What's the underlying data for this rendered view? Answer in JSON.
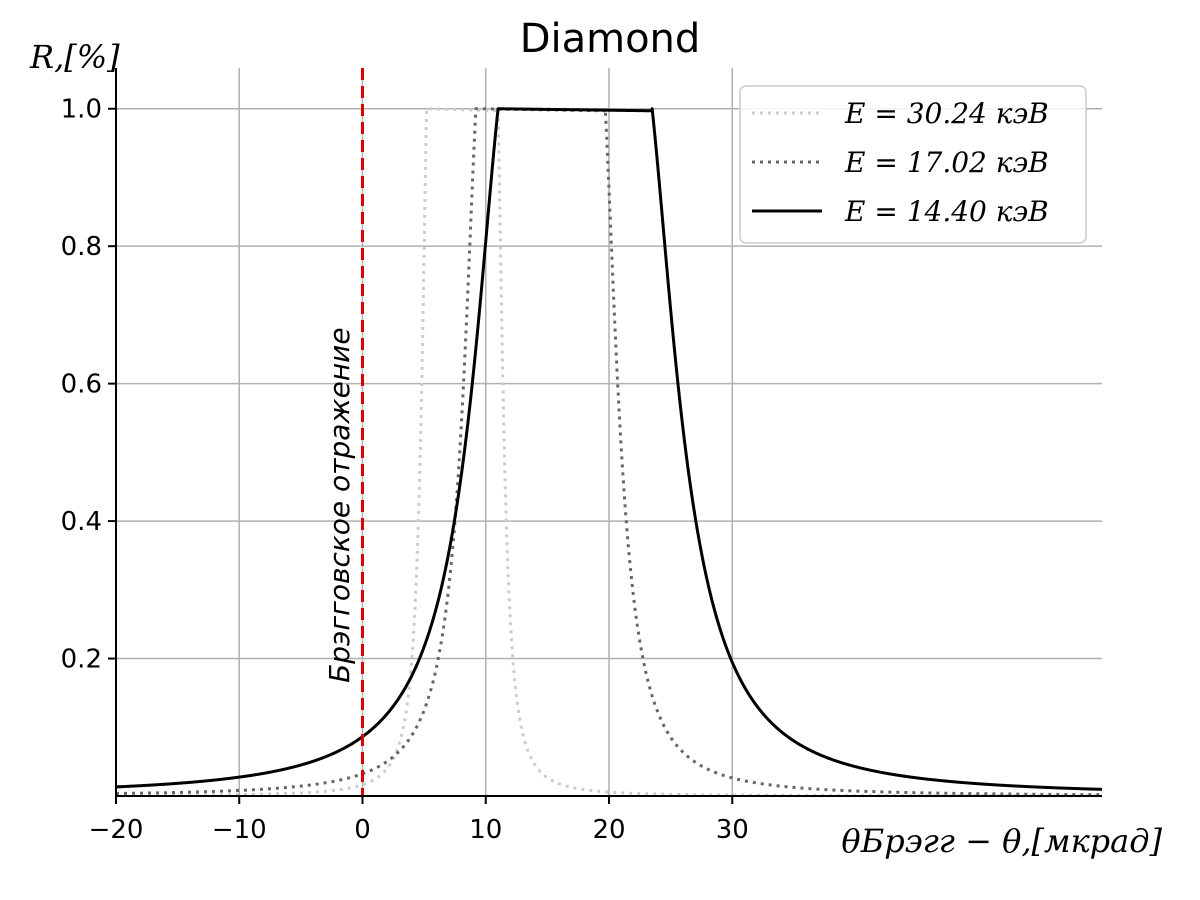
{
  "chart_data": {
    "type": "line",
    "title": "Diamond",
    "ylabel": "R,[%]",
    "xlabel": "θБрэгг − θ,[мкрад]",
    "xlim": [
      -20,
      60
    ],
    "ylim": [
      0,
      1.1
    ],
    "xticks": [
      -20,
      -10,
      0,
      10,
      20,
      30
    ],
    "xtick_labels": [
      "−20",
      "−10",
      "0",
      "10",
      "20",
      "30"
    ],
    "yticks": [
      0.2,
      0.4,
      0.6,
      0.8,
      1.0
    ],
    "ytick_labels": [
      "0.2",
      "0.4",
      "0.6",
      "0.8",
      "1.0"
    ],
    "grid": true,
    "legend_position": "top-right",
    "series": [
      {
        "name": "E = 30.24 кэВ",
        "color": "#cccccc",
        "style": "dotted",
        "plateau": [
          5.2,
          11.0
        ],
        "tail_width": 0.9
      },
      {
        "name": "E = 17.02 кэВ",
        "color": "#666666",
        "style": "dotted",
        "plateau": [
          9.2,
          19.7
        ],
        "tail_width": 2.3
      },
      {
        "name": "E = 14.40 кэВ",
        "color": "#000000",
        "style": "solid",
        "plateau": [
          11.0,
          23.5
        ],
        "tail_width": 4.8
      }
    ],
    "annotations": [
      {
        "type": "vline",
        "x": 0,
        "color": "#dd0000",
        "style": "dashed"
      },
      {
        "type": "text",
        "text": "Брэгговское отражение",
        "x": -1.5,
        "y": 0.15,
        "rotation": -90
      }
    ]
  }
}
